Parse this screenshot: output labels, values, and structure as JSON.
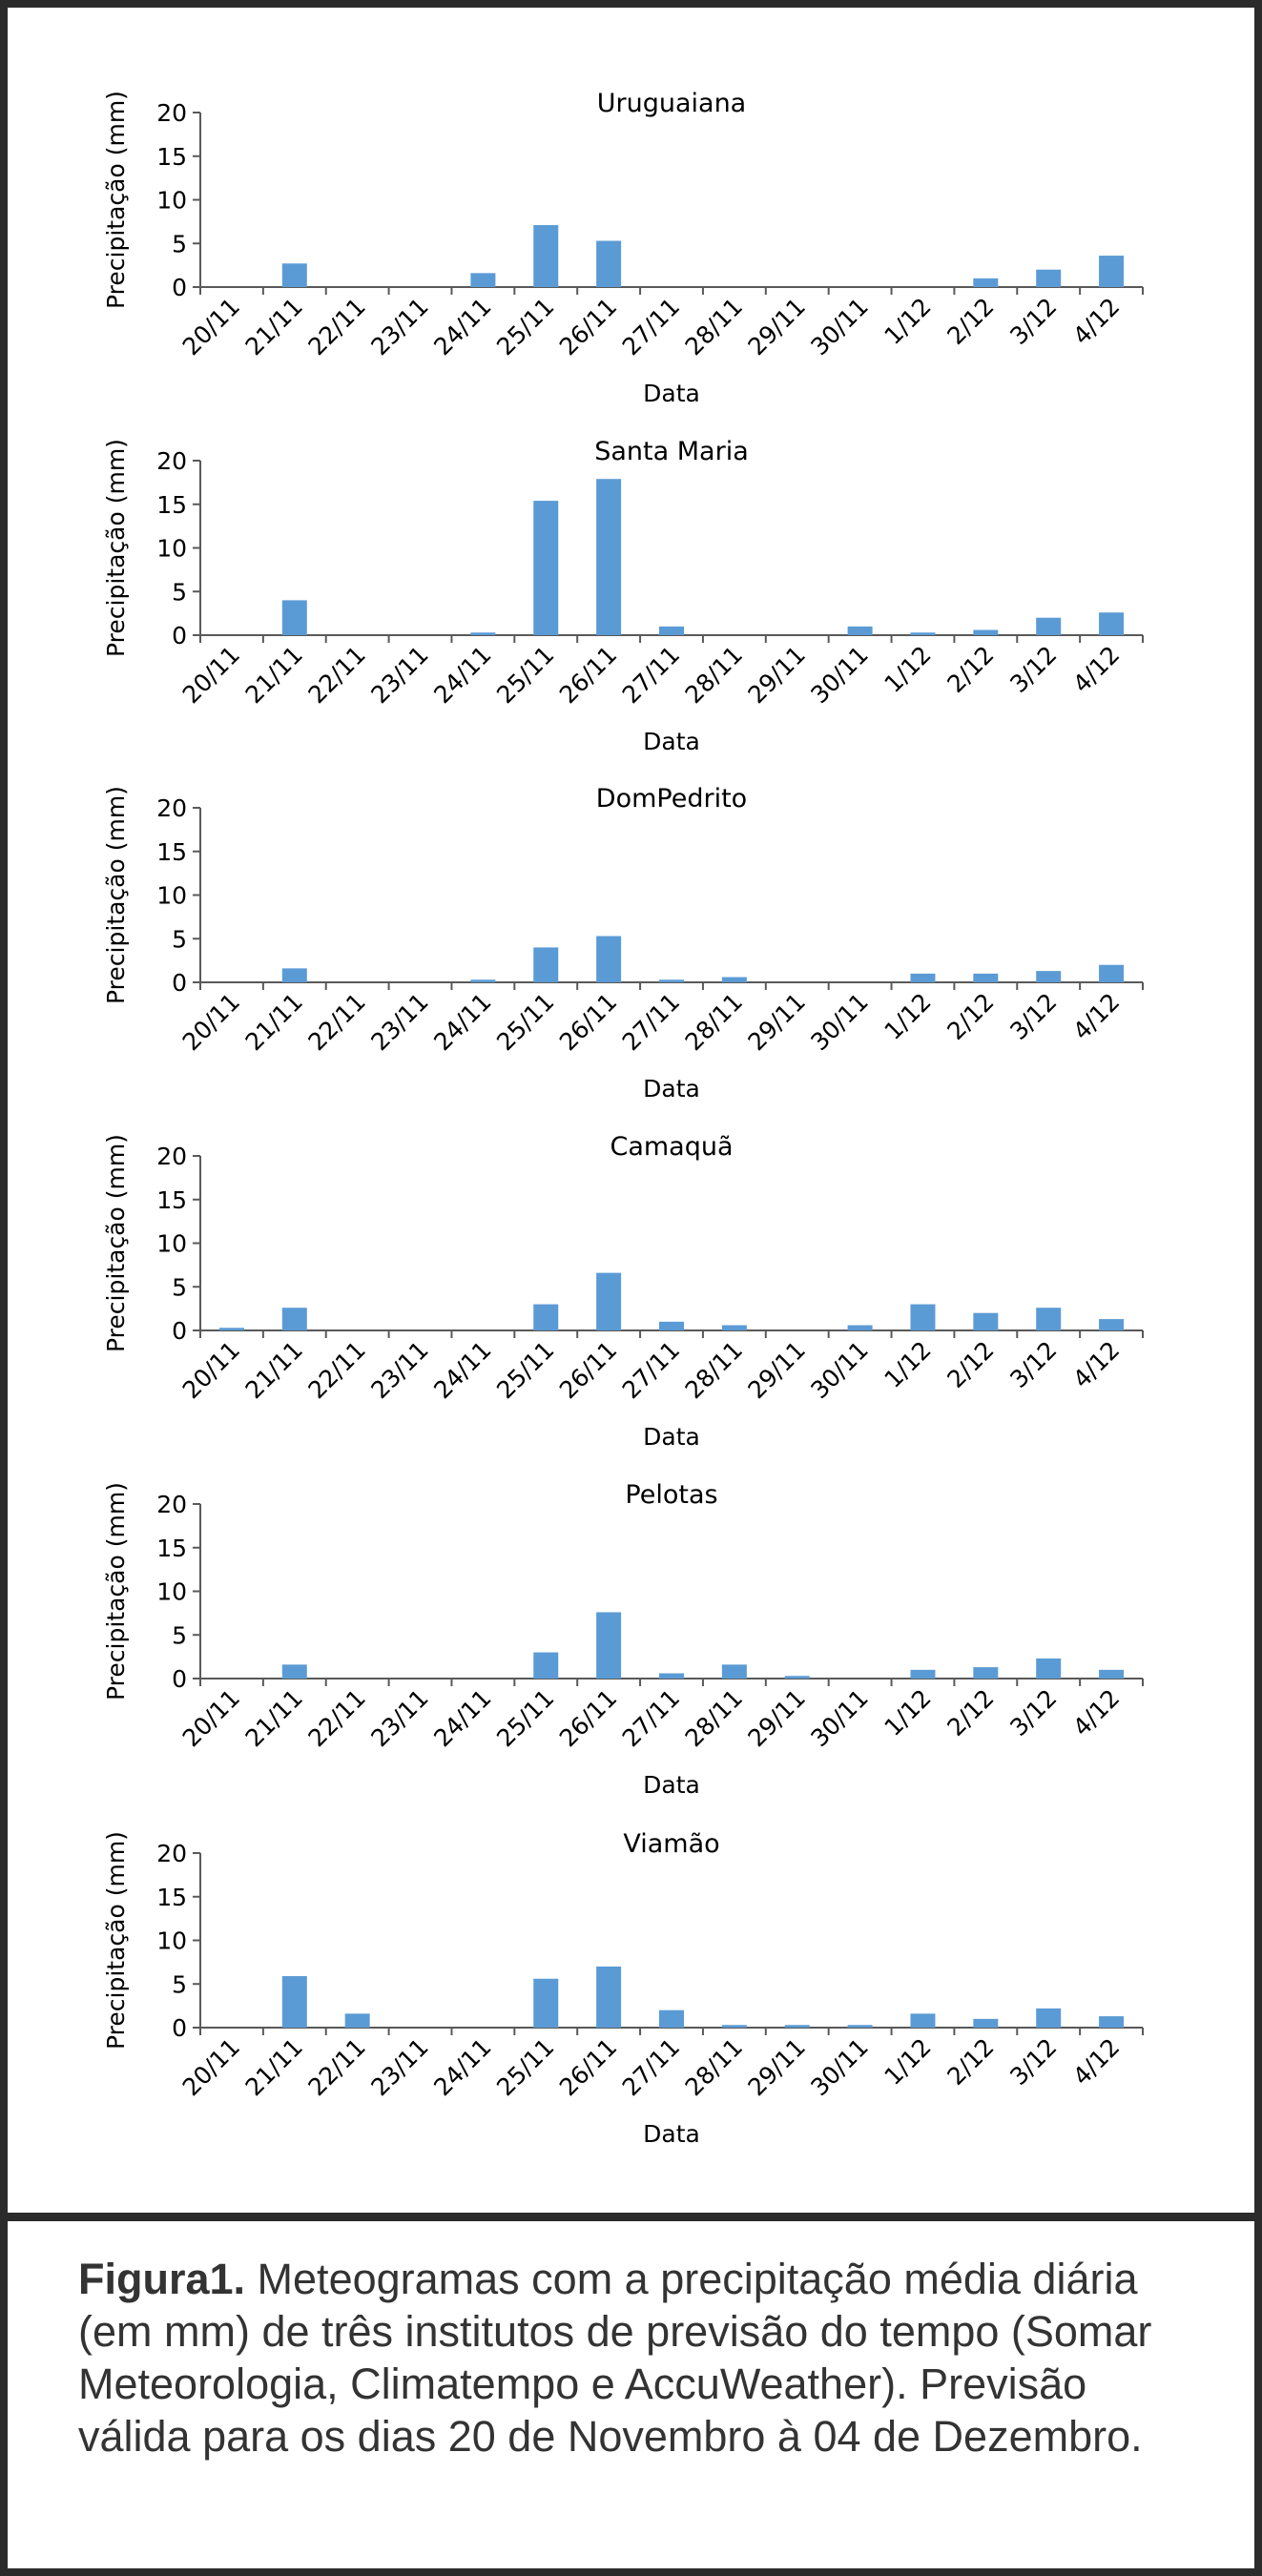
{
  "chart_data": [
    {
      "type": "bar",
      "title": "Uruguaiana",
      "xlabel": "Data",
      "ylabel": "Precipitação (mm)",
      "ylim": [
        0,
        20
      ],
      "yticks": [
        "0",
        "5",
        "10",
        "15",
        "20"
      ],
      "categories": [
        "20/11",
        "21/11",
        "22/11",
        "23/11",
        "24/11",
        "25/11",
        "26/11",
        "27/11",
        "28/11",
        "29/11",
        "30/11",
        "1/12",
        "2/12",
        "3/12",
        "4/12"
      ],
      "values": [
        0,
        2.7,
        0,
        0,
        1.6,
        7.1,
        5.3,
        0,
        0,
        0,
        0,
        0,
        1.0,
        2.0,
        3.6
      ],
      "color": "#5b9bd5"
    },
    {
      "type": "bar",
      "title": "Santa Maria",
      "xlabel": "Data",
      "ylabel": "Precipitação (mm)",
      "ylim": [
        0,
        20
      ],
      "yticks": [
        "0",
        "5",
        "10",
        "15",
        "20"
      ],
      "categories": [
        "20/11",
        "21/11",
        "22/11",
        "23/11",
        "24/11",
        "25/11",
        "26/11",
        "27/11",
        "28/11",
        "29/11",
        "30/11",
        "1/12",
        "2/12",
        "3/12",
        "4/12"
      ],
      "values": [
        0,
        4.0,
        0,
        0,
        0.3,
        15.4,
        17.9,
        1.0,
        0,
        0,
        1.0,
        0.3,
        0.6,
        2.0,
        2.6
      ],
      "color": "#5b9bd5"
    },
    {
      "type": "bar",
      "title": "DomPedrito",
      "xlabel": "Data",
      "ylabel": "Precipitação (mm)",
      "ylim": [
        0,
        20
      ],
      "yticks": [
        "0",
        "5",
        "10",
        "15",
        "20"
      ],
      "categories": [
        "20/11",
        "21/11",
        "22/11",
        "23/11",
        "24/11",
        "25/11",
        "26/11",
        "27/11",
        "28/11",
        "29/11",
        "30/11",
        "1/12",
        "2/12",
        "3/12",
        "4/12"
      ],
      "values": [
        0,
        1.6,
        0,
        0,
        0.3,
        4.0,
        5.3,
        0.3,
        0.6,
        0,
        0,
        1.0,
        1.0,
        1.3,
        2.0
      ],
      "color": "#5b9bd5"
    },
    {
      "type": "bar",
      "title": "Camaquã",
      "xlabel": "Data",
      "ylabel": "Precipitação (mm)",
      "ylim": [
        0,
        20
      ],
      "yticks": [
        "0",
        "5",
        "10",
        "15",
        "20"
      ],
      "categories": [
        "20/11",
        "21/11",
        "22/11",
        "23/11",
        "24/11",
        "25/11",
        "26/11",
        "27/11",
        "28/11",
        "29/11",
        "30/11",
        "1/12",
        "2/12",
        "3/12",
        "4/12"
      ],
      "values": [
        0.3,
        2.6,
        0,
        0,
        0,
        3.0,
        6.6,
        1.0,
        0.6,
        0,
        0.6,
        3.0,
        2.0,
        2.6,
        1.3
      ],
      "color": "#5b9bd5"
    },
    {
      "type": "bar",
      "title": "Pelotas",
      "xlabel": "Data",
      "ylabel": "Precipitação (mm)",
      "ylim": [
        0,
        20
      ],
      "yticks": [
        "0",
        "5",
        "10",
        "15",
        "20"
      ],
      "categories": [
        "20/11",
        "21/11",
        "22/11",
        "23/11",
        "24/11",
        "25/11",
        "26/11",
        "27/11",
        "28/11",
        "29/11",
        "30/11",
        "1/12",
        "2/12",
        "3/12",
        "4/12"
      ],
      "values": [
        0,
        1.6,
        0,
        0,
        0,
        3.0,
        7.6,
        0.6,
        1.6,
        0.3,
        0,
        1.0,
        1.3,
        2.3,
        1.0
      ],
      "color": "#5b9bd5"
    },
    {
      "type": "bar",
      "title": "Viamão",
      "xlabel": "Data",
      "ylabel": "Precipitação (mm)",
      "ylim": [
        0,
        20
      ],
      "yticks": [
        "0",
        "5",
        "10",
        "15",
        "20"
      ],
      "categories": [
        "20/11",
        "21/11",
        "22/11",
        "23/11",
        "24/11",
        "25/11",
        "26/11",
        "27/11",
        "28/11",
        "29/11",
        "30/11",
        "1/12",
        "2/12",
        "3/12",
        "4/12"
      ],
      "values": [
        0,
        5.9,
        1.6,
        0,
        0,
        5.6,
        7.0,
        2.0,
        0.3,
        0.3,
        0.3,
        1.6,
        1.0,
        2.2,
        1.3
      ],
      "color": "#5b9bd5"
    }
  ],
  "caption": {
    "label": "Figura1.",
    "text": " Meteogramas com a precipitação média diária (em mm) de três institutos de previsão do tempo (Somar Meteorologia, Climatempo e AccuWeather). Previsão válida para os dias 20 de Novembro à 04 de Dezembro."
  }
}
